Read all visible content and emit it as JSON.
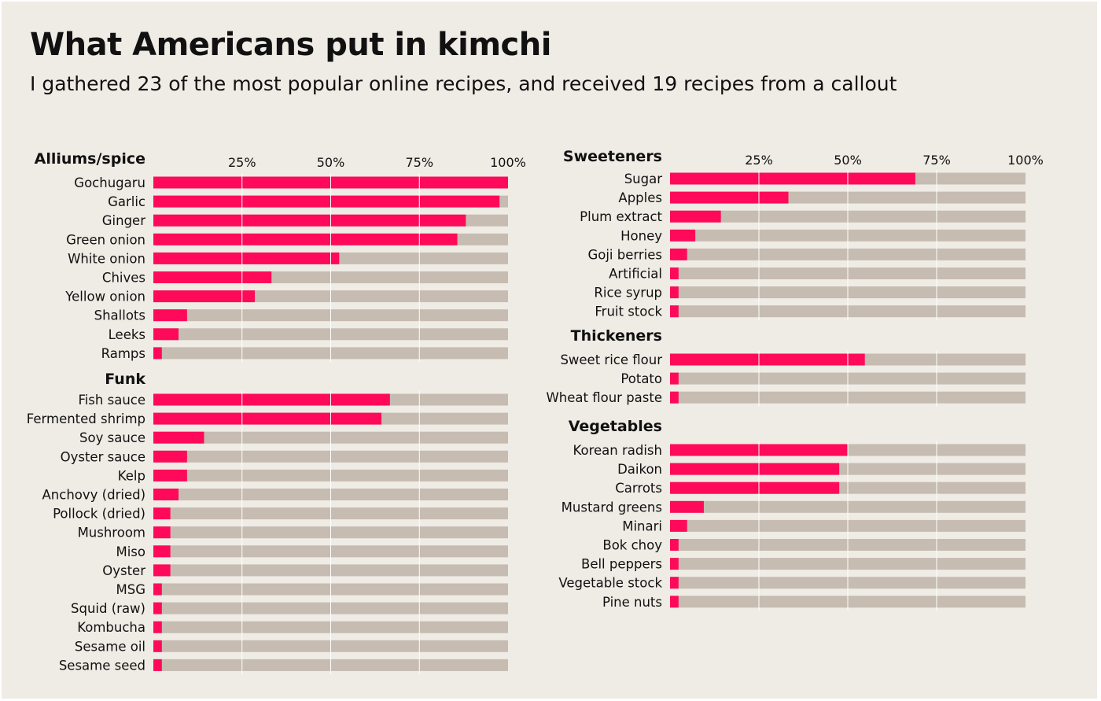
{
  "title": "What Americans put in kimchi",
  "subtitle": "I gathered 23 of the most popular online recipes, and received 19 recipes from a callout",
  "colors": {
    "bar": "#ff0a5a",
    "track": "#c6bcb1",
    "grid": "#ffffff",
    "background": "#efebe5"
  },
  "chart_data": {
    "type": "bar",
    "orientation": "horizontal",
    "unit": "%",
    "xlim": [
      0,
      100
    ],
    "ticks": [
      "25%",
      "50%",
      "75%",
      "100%"
    ],
    "grid": true,
    "groups": [
      {
        "name": "Alliums/spice",
        "column": "left",
        "items": [
          {
            "label": "Gochugaru",
            "value": 100
          },
          {
            "label": "Garlic",
            "value": 97.6
          },
          {
            "label": "Ginger",
            "value": 88.1
          },
          {
            "label": "Green onion",
            "value": 85.7
          },
          {
            "label": "White onion",
            "value": 52.4
          },
          {
            "label": "Chives",
            "value": 33.3
          },
          {
            "label": "Yellow onion",
            "value": 28.6
          },
          {
            "label": "Shallots",
            "value": 9.5
          },
          {
            "label": "Leeks",
            "value": 7.1
          },
          {
            "label": "Ramps",
            "value": 2.4
          }
        ]
      },
      {
        "name": "Funk",
        "column": "left",
        "items": [
          {
            "label": "Fish sauce",
            "value": 66.7
          },
          {
            "label": "Fermented shrimp",
            "value": 64.3
          },
          {
            "label": "Soy sauce",
            "value": 14.3
          },
          {
            "label": "Oyster sauce",
            "value": 9.5
          },
          {
            "label": "Kelp",
            "value": 9.5
          },
          {
            "label": "Anchovy (dried)",
            "value": 7.1
          },
          {
            "label": "Pollock (dried)",
            "value": 4.8
          },
          {
            "label": "Mushroom",
            "value": 4.8
          },
          {
            "label": "Miso",
            "value": 4.8
          },
          {
            "label": "Oyster",
            "value": 4.8
          },
          {
            "label": "MSG",
            "value": 2.4
          },
          {
            "label": "Squid (raw)",
            "value": 2.4
          },
          {
            "label": "Kombucha",
            "value": 2.4
          },
          {
            "label": "Sesame oil",
            "value": 2.4
          },
          {
            "label": "Sesame seed",
            "value": 2.4
          }
        ]
      },
      {
        "name": "Sweeteners",
        "column": "right",
        "items": [
          {
            "label": "Sugar",
            "value": 69.0
          },
          {
            "label": "Apples",
            "value": 33.3
          },
          {
            "label": "Plum extract",
            "value": 14.3
          },
          {
            "label": "Honey",
            "value": 7.1
          },
          {
            "label": "Goji berries",
            "value": 4.8
          },
          {
            "label": "Artificial",
            "value": 2.4
          },
          {
            "label": "Rice syrup",
            "value": 2.4
          },
          {
            "label": "Fruit stock",
            "value": 2.4
          }
        ]
      },
      {
        "name": "Thickeners",
        "column": "right",
        "items": [
          {
            "label": "Sweet rice flour",
            "value": 54.8
          },
          {
            "label": "Potato",
            "value": 2.4
          },
          {
            "label": "Wheat flour paste",
            "value": 2.4
          }
        ]
      },
      {
        "name": "Vegetables",
        "column": "right",
        "items": [
          {
            "label": "Korean radish",
            "value": 50.0
          },
          {
            "label": "Daikon",
            "value": 47.6
          },
          {
            "label": "Carrots",
            "value": 47.6
          },
          {
            "label": "Mustard greens",
            "value": 9.5
          },
          {
            "label": "Minari",
            "value": 4.8
          },
          {
            "label": "Bok choy",
            "value": 2.4
          },
          {
            "label": "Bell peppers",
            "value": 2.4
          },
          {
            "label": "Vegetable stock",
            "value": 2.4
          },
          {
            "label": "Pine nuts",
            "value": 2.4
          }
        ]
      }
    ]
  }
}
